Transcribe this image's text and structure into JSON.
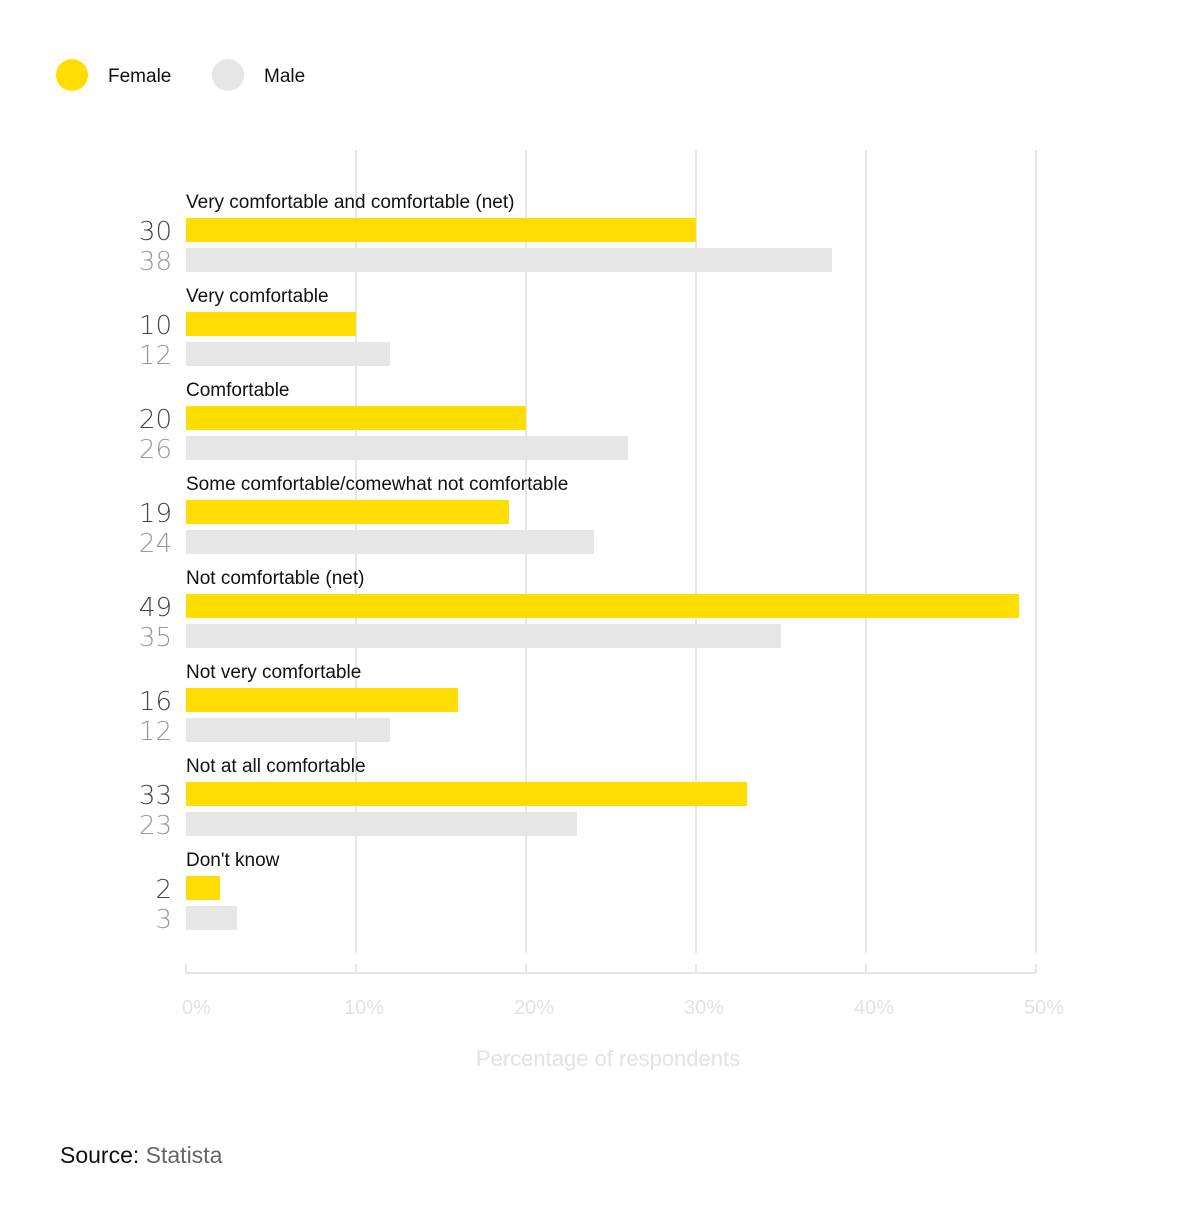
{
  "chart_data": {
    "type": "bar",
    "orientation": "horizontal",
    "categories": [
      "Very comfortable and comfortable (net)",
      "Very comfortable",
      "Comfortable",
      "Some comfortable/comewhat not comfortable",
      "Not comfortable (net)",
      "Not very comfortable",
      "Not at all comfortable",
      "Don't know"
    ],
    "series": [
      {
        "name": "Female",
        "color": "#FFDD00",
        "values": [
          30,
          10,
          20,
          19,
          49,
          16,
          33,
          2
        ],
        "labels": [
          "30",
          "10",
          "20",
          "19",
          "49",
          "16",
          "33",
          "2"
        ]
      },
      {
        "name": "Male",
        "color": "#E6E6E6",
        "values": [
          38,
          12,
          26,
          24,
          35,
          12,
          23,
          3
        ],
        "labels": [
          "38",
          "12",
          "26",
          "24",
          "35",
          "12",
          "23",
          "3"
        ]
      }
    ],
    "xlim": [
      0,
      50
    ],
    "xticks": [
      0,
      10,
      20,
      30,
      40,
      50
    ],
    "xtick_labels": [
      "0%",
      "10%",
      "20%",
      "30%",
      "40%",
      "50%"
    ],
    "xlabel": "Percentage of respondents",
    "ylabel": "",
    "grid": true,
    "legend_position": "top-left"
  },
  "source": {
    "label": "Source:",
    "value": "Statista"
  },
  "colors": {
    "female": "#FFDD00",
    "male": "#E6E6E6",
    "male_value_text": "#999999",
    "grid": "#E6E6E6",
    "tick_text": "#E2E2E2"
  }
}
